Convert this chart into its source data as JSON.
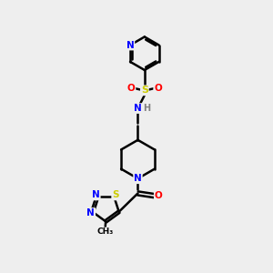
{
  "background_color": "#eeeeee",
  "atom_colors": {
    "N": "#0000ff",
    "O": "#ff0000",
    "S": "#cccc00",
    "C": "#000000",
    "H": "#808080"
  },
  "bond_color": "#000000",
  "bond_width": 1.8
}
